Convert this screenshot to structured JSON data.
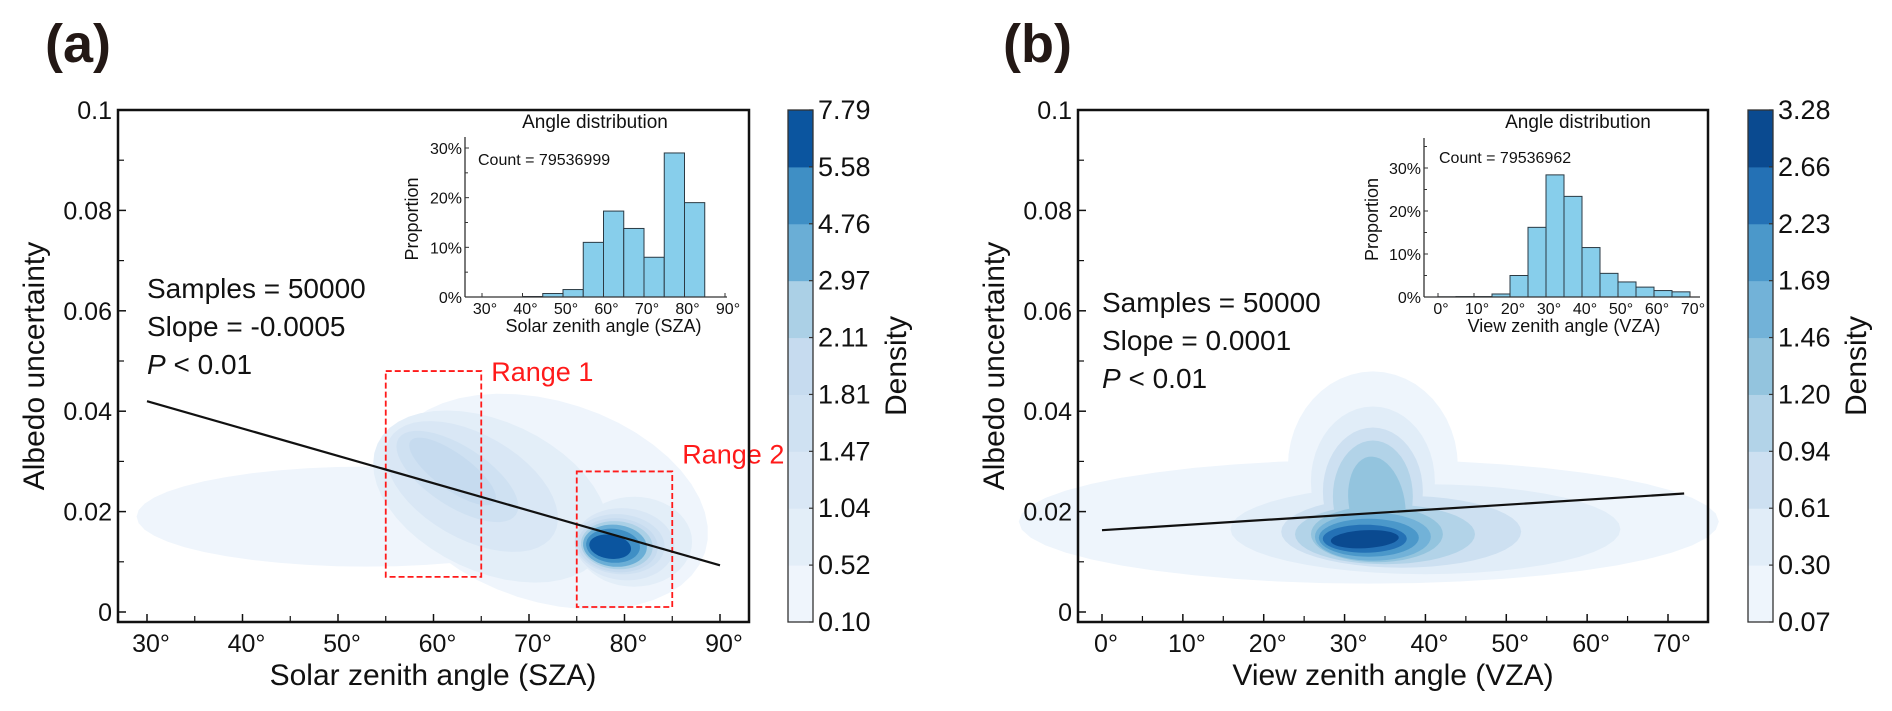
{
  "figure": {
    "panels": [
      "(a)",
      "(b)"
    ]
  },
  "chart_data": [
    {
      "type": "heatmap",
      "subtype": "kde-contour-with-regression",
      "panel_label": "(a)",
      "xlabel": "Solar zenith angle (SZA)",
      "ylabel": "Albedo uncertainty",
      "xlim": [
        27,
        93
      ],
      "ylim": [
        0,
        0.1
      ],
      "x_ticks": [
        30,
        40,
        50,
        60,
        70,
        80,
        90
      ],
      "x_tick_labels": [
        "30°",
        "40°",
        "50°",
        "60°",
        "70°",
        "80°",
        "90°"
      ],
      "x_minor_ticks": [
        35,
        45,
        55,
        65,
        75,
        85
      ],
      "y_ticks": [
        0,
        0.02,
        0.04,
        0.06,
        0.08,
        0.1
      ],
      "y_tick_labels": [
        "0",
        "0.02",
        "0.04",
        "0.06",
        "0.08",
        "0.1"
      ],
      "y_minor_ticks": [
        0.01,
        0.03,
        0.05,
        0.07,
        0.09
      ],
      "annotations": [
        "Samples = 50000",
        "Slope = -0.0005",
        "P < 0.01"
      ],
      "annotation_italic_prefix": "P",
      "regression_line": {
        "x": [
          30,
          90
        ],
        "y": [
          0.042,
          0.0093
        ]
      },
      "density_peaks": [
        {
          "name": "main",
          "x": 78.5,
          "y": 0.013,
          "level": 9
        },
        {
          "name": "secondary",
          "x": 61,
          "y": 0.029,
          "level": 5
        },
        {
          "name": "tail",
          "x": 35,
          "y": 0.019,
          "level": 1
        }
      ],
      "ranges": [
        {
          "label": "Range 1",
          "x": [
            55,
            65
          ],
          "y": [
            0.007,
            0.048
          ],
          "color": "#ff1a1a"
        },
        {
          "label": "Range 2",
          "x": [
            75,
            85
          ],
          "y": [
            0.001,
            0.028
          ],
          "color": "#ff1a1a"
        }
      ],
      "colorbar": {
        "title": "Density",
        "levels": [
          0.1,
          0.52,
          1.04,
          1.47,
          1.81,
          2.11,
          2.97,
          4.76,
          5.58,
          7.79
        ],
        "level_labels": [
          "0.10",
          "0.52",
          "1.04",
          "1.47",
          "1.81",
          "2.11",
          "2.97",
          "4.76",
          "5.58",
          "7.79"
        ],
        "colors": [
          "#eff5fc",
          "#e3eef8",
          "#d9e7f5",
          "#cfe1f2",
          "#c6dbef",
          "#abd0e6",
          "#6aaed6",
          "#3f8fc5",
          "#0b559f"
        ]
      },
      "inset": {
        "type": "bar",
        "title": "Angle distribution",
        "count_label": "Count = 79536999",
        "xlabel": "Solar zenith angle (SZA)",
        "ylabel": "Proportion",
        "xlim": [
          28,
          91
        ],
        "ylim": [
          0,
          31
        ],
        "x_ticks": [
          30,
          40,
          50,
          60,
          70,
          80,
          90
        ],
        "x_tick_labels": [
          "30°",
          "40°",
          "50°",
          "60°",
          "70°",
          "80°",
          "90°"
        ],
        "y_ticks": [
          0,
          10,
          20,
          30
        ],
        "y_tick_labels": [
          "0%",
          "10%",
          "20%",
          "30%"
        ],
        "y_minor_ticks": [
          5,
          15,
          25
        ],
        "bin_edges": [
          40,
          45,
          50,
          55,
          60,
          65,
          70,
          75,
          80,
          85
        ],
        "values": [
          0.1,
          0.7,
          1.5,
          11.0,
          17.3,
          13.8,
          8.0,
          29.0,
          19.0
        ],
        "bar_color": "#87ceeb"
      }
    },
    {
      "type": "heatmap",
      "subtype": "kde-contour-with-regression",
      "panel_label": "(b)",
      "xlabel": "View zenith angle (VZA)",
      "ylabel": "Albedo uncertainty",
      "xlim": [
        -3,
        75
      ],
      "ylim": [
        0,
        0.1
      ],
      "x_ticks": [
        0,
        10,
        20,
        30,
        40,
        50,
        60,
        70
      ],
      "x_tick_labels": [
        "0°",
        "10°",
        "20°",
        "30°",
        "40°",
        "50°",
        "60°",
        "70°"
      ],
      "x_minor_ticks": [
        5,
        15,
        25,
        35,
        45,
        55,
        65
      ],
      "y_ticks": [
        0,
        0.02,
        0.04,
        0.06,
        0.08,
        0.1
      ],
      "y_tick_labels": [
        "0",
        "0.02",
        "0.04",
        "0.06",
        "0.08",
        "0.1"
      ],
      "y_minor_ticks": [
        0.01,
        0.03,
        0.05,
        0.07,
        0.09
      ],
      "annotations": [
        "Samples = 50000",
        "Slope = 0.0001",
        "P < 0.01"
      ],
      "annotation_italic_prefix": "P",
      "regression_line": {
        "x": [
          0,
          72
        ],
        "y": [
          0.0163,
          0.0236
        ]
      },
      "density_peaks": [
        {
          "name": "main",
          "x": 33,
          "y": 0.0145,
          "level": 9
        },
        {
          "name": "upper-lobe",
          "x": 34,
          "y": 0.03,
          "level": 6
        },
        {
          "name": "tail",
          "x": 5,
          "y": 0.018,
          "level": 1
        }
      ],
      "colorbar": {
        "title": "Density",
        "levels": [
          0.07,
          0.3,
          0.61,
          0.94,
          1.2,
          1.46,
          1.69,
          2.23,
          2.66,
          3.28
        ],
        "level_labels": [
          "0.07",
          "0.30",
          "0.61",
          "0.94",
          "1.20",
          "1.46",
          "1.69",
          "2.23",
          "2.66",
          "3.28"
        ],
        "colors": [
          "#eef5fc",
          "#e1edf8",
          "#cde0f1",
          "#b2d3e8",
          "#93c4de",
          "#72b2d8",
          "#4b98ca",
          "#2471b5",
          "#0a4a90"
        ]
      },
      "inset": {
        "type": "bar",
        "title": "Angle distribution",
        "count_label": "Count = 79536962",
        "xlabel": "View zenith angle (VZA)",
        "ylabel": "Proportion",
        "xlim": [
          -3,
          75
        ],
        "ylim": [
          0,
          37
        ],
        "x_ticks": [
          0,
          10,
          20,
          30,
          40,
          50,
          60,
          70
        ],
        "x_tick_labels": [
          "0°",
          "10°",
          "20°",
          "30°",
          "40°",
          "50°",
          "60°",
          "70°"
        ],
        "y_ticks": [
          0,
          10,
          20,
          30
        ],
        "y_tick_labels": [
          "0%",
          "10%",
          "20%",
          "30%"
        ],
        "y_minor_ticks": [
          5,
          15,
          25,
          35
        ],
        "bin_edges": [
          0,
          5,
          10,
          15,
          20,
          25,
          30,
          35,
          40,
          45,
          50,
          55,
          60,
          65,
          70
        ],
        "values": [
          0.05,
          0.1,
          0.1,
          0.7,
          5.0,
          16.2,
          28.4,
          23.4,
          11.5,
          5.5,
          3.5,
          2.3,
          1.5,
          1.2
        ],
        "bar_color": "#87ceeb"
      }
    }
  ]
}
